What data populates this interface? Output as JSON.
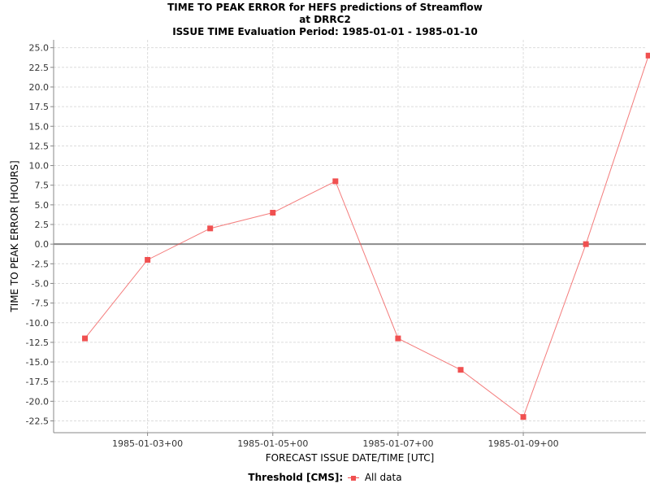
{
  "chart_data": {
    "type": "line",
    "title": "TIME TO PEAK ERROR for HEFS predictions of Streamflow",
    "subtitle": [
      "at DRRC2",
      "ISSUE TIME Evaluation Period: 1985-01-01 - 1985-01-10"
    ],
    "xlabel": "FORECAST ISSUE DATE/TIME [UTC]",
    "ylabel": "TIME TO PEAK ERROR [HOURS]",
    "xlim": [
      "1985-01-01T12:00",
      "1985-01-10T23:00"
    ],
    "ylim": [
      -24,
      26
    ],
    "x_ticks": [
      "1985-01-03+00",
      "1985-01-05+00",
      "1985-01-07+00",
      "1985-01-09+00"
    ],
    "y_ticks": [
      "25.0",
      "22.5",
      "20.0",
      "17.5",
      "15.0",
      "12.5",
      "10.0",
      "7.5",
      "5.0",
      "2.5",
      "0.0",
      "-2.5",
      "-5.0",
      "-7.5",
      "-10.0",
      "-12.5",
      "-15.0",
      "-17.5",
      "-20.0",
      "-22.5"
    ],
    "grid": true,
    "zero_line": true,
    "legend_placement": "bottom-center",
    "series": [
      {
        "name": "All data",
        "color": "#f05050",
        "marker": "square",
        "x": [
          "1985-01-02T00:00",
          "1985-01-03T00:00",
          "1985-01-04T00:00",
          "1985-01-05T00:00",
          "1985-01-06T00:00",
          "1985-01-07T00:00",
          "1985-01-08T00:00",
          "1985-01-09T00:00",
          "1985-01-10T00:00",
          "1985-01-11T00:00"
        ],
        "y": [
          -12,
          -2,
          2,
          4,
          8,
          -12,
          -16,
          -22,
          0,
          24
        ]
      }
    ]
  },
  "legend": {
    "title": "Threshold [CMS]:",
    "entries": [
      "All data"
    ]
  }
}
